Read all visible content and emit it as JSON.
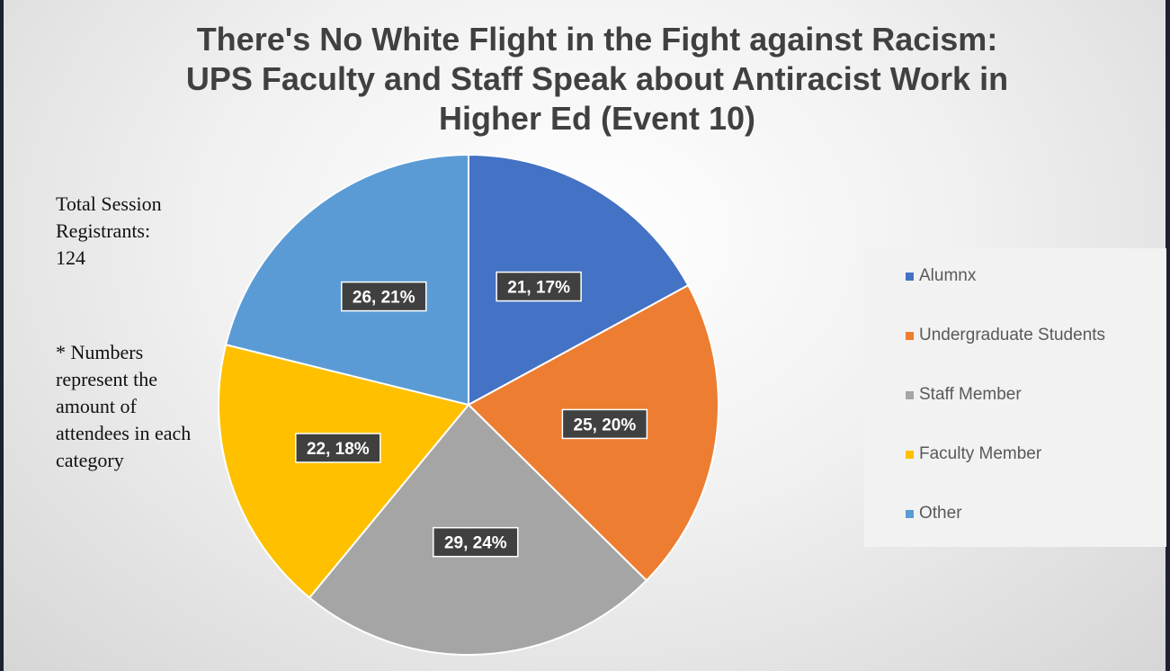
{
  "chart_data": {
    "type": "pie",
    "title_lines": [
      "There's No White Flight in the Fight against Racism:",
      "UPS Faculty and Staff Speak about Antiracist Work in",
      "Higher Ed (Event 10)"
    ],
    "categories": [
      "Alumnx",
      "Undergraduate Students",
      "Staff Member",
      "Faculty Member",
      "Other"
    ],
    "values": [
      21,
      25,
      29,
      22,
      26
    ],
    "data_labels": [
      "21, 17%",
      "25, 20%",
      "29, 24%",
      "22, 18%",
      "26, 21%"
    ],
    "colors": [
      "#4472c4",
      "#ed7d31",
      "#a5a5a5",
      "#ffc000",
      "#5b9bd5"
    ],
    "start_angle_deg": 0,
    "direction": "clockwise",
    "legend_position": "right"
  },
  "annotations": {
    "total_lines": [
      "Total Session",
      "Registrants:",
      "124"
    ],
    "numbers_lines": [
      "* Numbers",
      "represent the",
      "amount of",
      "attendees in each",
      "category"
    ]
  }
}
